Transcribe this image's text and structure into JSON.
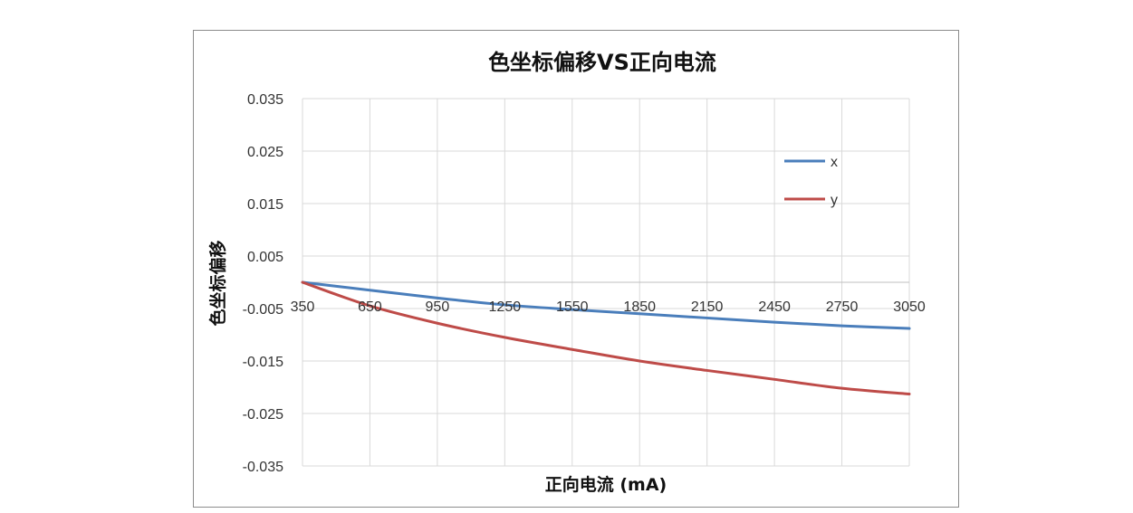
{
  "chart_data": {
    "type": "line",
    "title": "色坐标偏移VS正向电流",
    "xlabel": "正向电流 (mA)",
    "ylabel": "色坐标偏移",
    "x": [
      350,
      650,
      950,
      1250,
      1550,
      1850,
      2150,
      2450,
      2750,
      3050
    ],
    "xlim": [
      350,
      3050
    ],
    "ylim": [
      -0.035,
      0.035
    ],
    "y_ticks": [
      "0.035",
      "0.025",
      "0.015",
      "0.005",
      "-0.005",
      "-0.015",
      "-0.025",
      "-0.035"
    ],
    "y_tick_values": [
      0.035,
      0.025,
      0.015,
      0.005,
      -0.005,
      -0.015,
      -0.025,
      -0.035
    ],
    "x_ticks": [
      "350",
      "650",
      "950",
      "1250",
      "1550",
      "1850",
      "2150",
      "2450",
      "2750",
      "3050"
    ],
    "grid": true,
    "legend_position": "top-right",
    "series": [
      {
        "name": "x",
        "color": "#4a7ebb",
        "values": [
          0,
          -0.0015,
          -0.003,
          -0.0043,
          -0.0052,
          -0.006,
          -0.0068,
          -0.0076,
          -0.0083,
          -0.0088
        ]
      },
      {
        "name": "y",
        "color": "#be4b48",
        "values": [
          0,
          -0.0045,
          -0.0078,
          -0.0105,
          -0.0128,
          -0.015,
          -0.0168,
          -0.0185,
          -0.0202,
          -0.0213
        ]
      }
    ]
  }
}
